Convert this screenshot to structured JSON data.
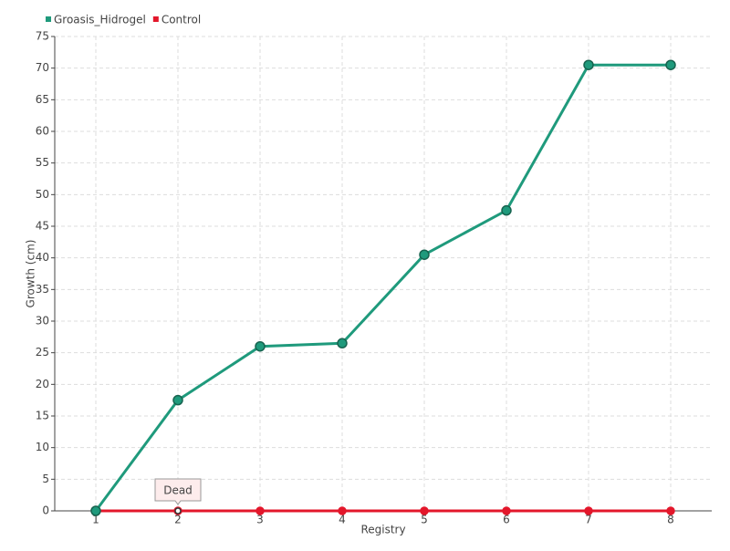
{
  "chart_data": {
    "type": "line",
    "x_label": "Registry",
    "y_label": "Growth (cm)",
    "x": [
      1,
      2,
      3,
      4,
      5,
      6,
      7,
      8
    ],
    "xlim": [
      0.5,
      8.5
    ],
    "xticks": [
      1,
      2,
      3,
      4,
      5,
      6,
      7,
      8
    ],
    "ylim": [
      0,
      75
    ],
    "yticks": [
      0,
      5,
      10,
      15,
      20,
      25,
      30,
      35,
      40,
      45,
      50,
      55,
      60,
      65,
      70,
      75
    ],
    "grid": true,
    "legend": "top-left",
    "series": [
      {
        "name": "Groasis_Hidrogel",
        "color": "#1f9a7c",
        "values": [
          0,
          17.5,
          26,
          26.5,
          40.5,
          47.5,
          70.5,
          70.5
        ]
      },
      {
        "name": "Control",
        "color": "#e3172b",
        "values": [
          0,
          0,
          0,
          0,
          0,
          0,
          0,
          0
        ]
      }
    ],
    "annotations": [
      {
        "text": "Dead",
        "x": 2,
        "y": 0
      }
    ]
  }
}
